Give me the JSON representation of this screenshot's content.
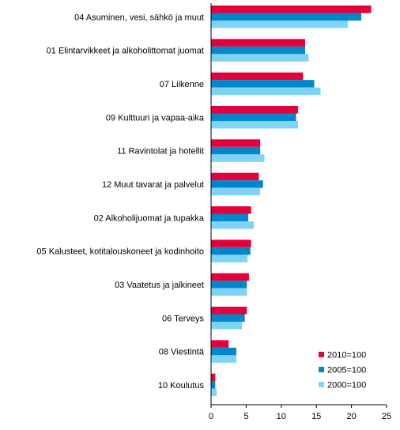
{
  "chart_data": {
    "type": "bar",
    "orientation": "horizontal",
    "title": "",
    "xlabel": "",
    "ylabel": "",
    "categories": [
      "04 Asuminen, vesi, sähkö ja muut",
      "01 Elintarvikkeet ja alkoholittomat juomat",
      "07 Liikenne",
      "09 Kulttuuri ja vapaa-aika",
      "11 Ravintolat ja hotellit",
      "12 Muut tavarat ja palvelut",
      "02 Alkoholijuomat ja tupakka",
      "05 Kalusteet, kotitalouskoneet ja kodinhoito",
      "03 Vaatetus ja jalkineet",
      "06 Terveys",
      "08 Viestintä",
      "10 Koulutus"
    ],
    "series": [
      {
        "name": "2010=100",
        "color": "#e4003a",
        "values": [
          22.8,
          13.4,
          13.1,
          12.4,
          7.0,
          6.8,
          5.7,
          5.7,
          5.4,
          5.1,
          2.5,
          0.6
        ]
      },
      {
        "name": "2005=100",
        "color": "#0086cb",
        "values": [
          21.4,
          13.4,
          14.7,
          12.1,
          7.0,
          7.4,
          5.3,
          5.6,
          5.1,
          4.8,
          3.6,
          0.6
        ]
      },
      {
        "name": "2000=100",
        "color": "#7fd3f7",
        "values": [
          19.5,
          13.9,
          15.6,
          12.4,
          7.6,
          7.0,
          6.1,
          5.2,
          5.1,
          4.4,
          3.6,
          0.8
        ]
      }
    ],
    "xlim": [
      0,
      25
    ],
    "xticks": [
      "0",
      "5",
      "10",
      "15",
      "20",
      "25"
    ],
    "grid": false,
    "legend_position": "bottom-right"
  }
}
